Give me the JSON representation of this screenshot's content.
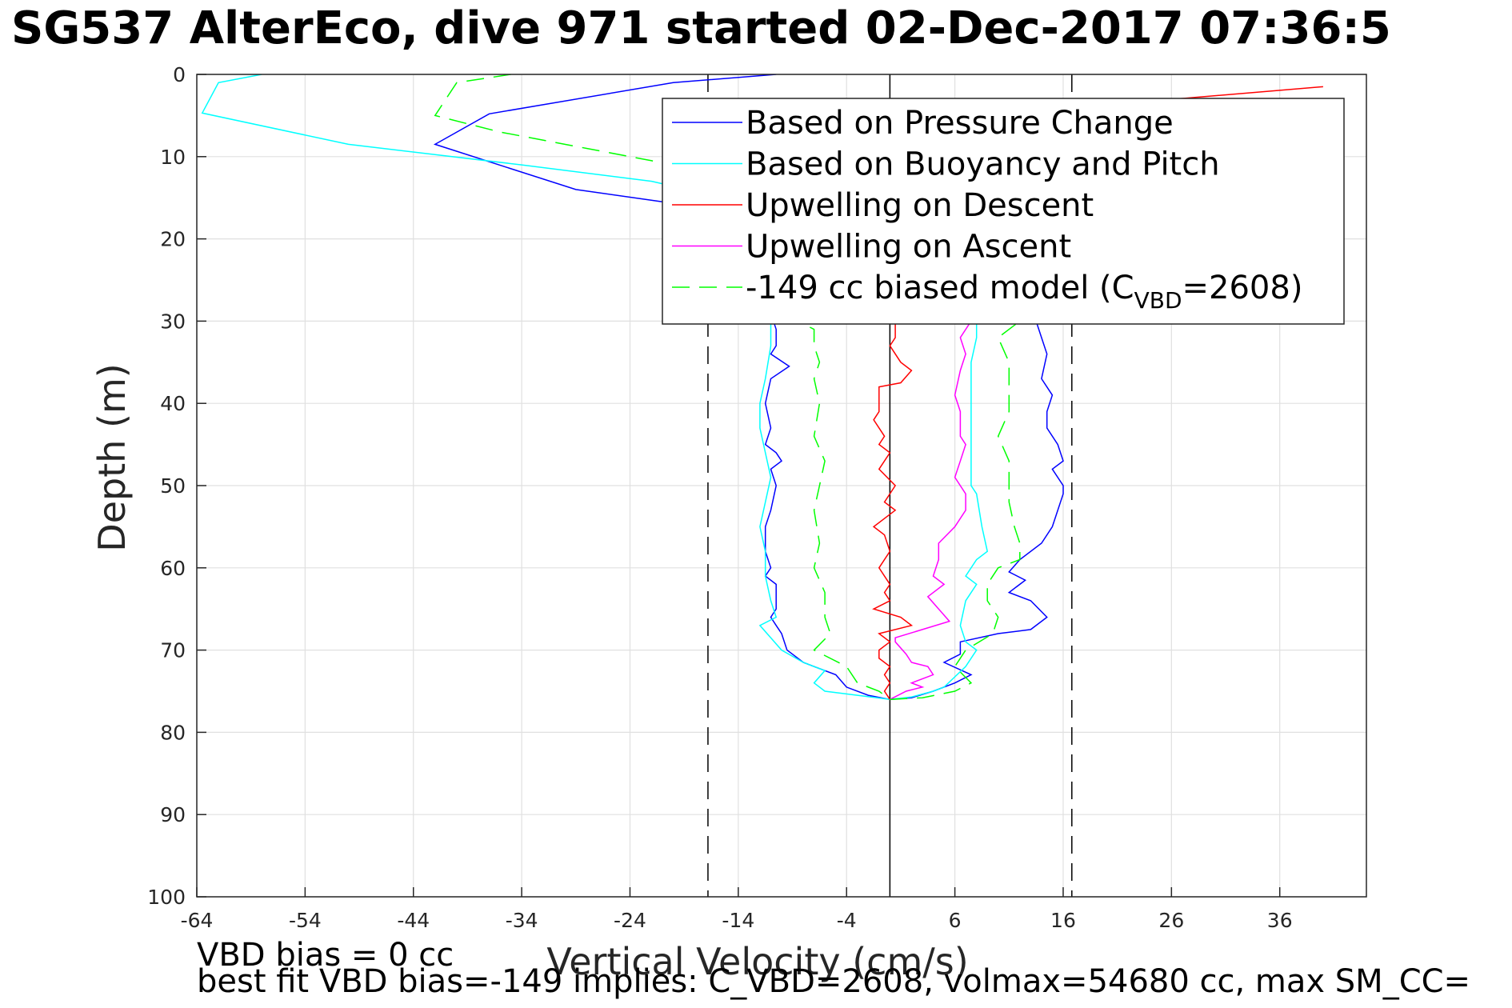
{
  "chart_data": {
    "type": "line",
    "title": "SG537 AlterEco, dive 971 started 02-Dec-2017 07:36:5",
    "xlabel": "Vertical Velocity (cm/s)",
    "ylabel": "Depth (m)",
    "xlim": [
      -64,
      44
    ],
    "ylim": [
      0,
      100
    ],
    "y_reversed": true,
    "grid": true,
    "xticks": [
      -64,
      -54,
      -44,
      -34,
      -24,
      -14,
      -4,
      6,
      16,
      26,
      36
    ],
    "yticks": [
      0,
      10,
      20,
      30,
      40,
      50,
      60,
      70,
      80,
      90,
      100
    ],
    "legend_position": "top-right",
    "reference_lines": [
      {
        "x": 0,
        "style": "solid",
        "color": "#000000"
      },
      {
        "x": -16.8,
        "style": "dashed",
        "color": "#000000"
      },
      {
        "x": 16.8,
        "style": "dashed",
        "color": "#000000"
      }
    ],
    "series": [
      {
        "name": "Based on Pressure Change",
        "color": "#0000ff",
        "style": "solid",
        "points": [
          [
            -10.5,
            0
          ],
          [
            -20,
            1
          ],
          [
            -37,
            4.8
          ],
          [
            -42,
            8.5
          ],
          [
            -29,
            14
          ],
          [
            -21,
            15.5
          ],
          [
            -16,
            17
          ],
          [
            -13,
            21
          ],
          [
            -10.5,
            31
          ],
          [
            -10.5,
            33
          ],
          [
            -11,
            34
          ],
          [
            -9.3,
            35.5
          ],
          [
            -11,
            37
          ],
          [
            -11.5,
            40
          ],
          [
            -11,
            43
          ],
          [
            -11.5,
            45
          ],
          [
            -10.5,
            46
          ],
          [
            -10,
            47
          ],
          [
            -11,
            48
          ],
          [
            -10.5,
            50
          ],
          [
            -11,
            53
          ],
          [
            -11.5,
            55
          ],
          [
            -11.5,
            58
          ],
          [
            -11,
            60
          ],
          [
            -11.5,
            61
          ],
          [
            -10.5,
            62
          ],
          [
            -10.5,
            65
          ],
          [
            -11,
            66
          ],
          [
            -10.5,
            67
          ],
          [
            -10,
            68
          ],
          [
            -9.5,
            70
          ],
          [
            -8,
            71.5
          ],
          [
            -5,
            73
          ],
          [
            -4,
            74.5
          ],
          [
            -2,
            75.5
          ],
          [
            0,
            76
          ],
          [
            2,
            75.8
          ],
          [
            4,
            75
          ],
          [
            6,
            74
          ],
          [
            7.5,
            73
          ],
          [
            5,
            71.5
          ],
          [
            6.5,
            70.5
          ],
          [
            6.5,
            69
          ],
          [
            10,
            68
          ],
          [
            13,
            67.5
          ],
          [
            14.5,
            66
          ],
          [
            13,
            64
          ],
          [
            11,
            63
          ],
          [
            12.5,
            61.5
          ],
          [
            11,
            60.5
          ],
          [
            12,
            59
          ],
          [
            14,
            57
          ],
          [
            15,
            55
          ],
          [
            16,
            51
          ],
          [
            16,
            50
          ],
          [
            15,
            48
          ],
          [
            16,
            47
          ],
          [
            15.5,
            45
          ],
          [
            14.5,
            43
          ],
          [
            14.5,
            41
          ],
          [
            15,
            39
          ],
          [
            14,
            37
          ],
          [
            14.5,
            34
          ],
          [
            14,
            32
          ],
          [
            13.5,
            30
          ]
        ]
      },
      {
        "name": "Based on Buoyancy and Pitch",
        "color": "#00ffff",
        "style": "solid",
        "points": [
          [
            -58,
            0
          ],
          [
            -62,
            1
          ],
          [
            -63.5,
            4.7
          ],
          [
            -50,
            8.5
          ],
          [
            -34,
            11
          ],
          [
            -22,
            13
          ],
          [
            -17,
            14.5
          ],
          [
            -12.5,
            22
          ],
          [
            -11,
            30
          ],
          [
            -11,
            33
          ],
          [
            -11.5,
            37
          ],
          [
            -12,
            40
          ],
          [
            -12,
            43
          ],
          [
            -11.5,
            46
          ],
          [
            -11,
            49
          ],
          [
            -11.5,
            52
          ],
          [
            -12,
            55
          ],
          [
            -11.5,
            58
          ],
          [
            -11.5,
            61
          ],
          [
            -11,
            64
          ],
          [
            -10.5,
            66
          ],
          [
            -12,
            67
          ],
          [
            -11,
            68.5
          ],
          [
            -10,
            70
          ],
          [
            -8,
            71.5
          ],
          [
            -6,
            72.5
          ],
          [
            -7,
            74
          ],
          [
            -6,
            75
          ],
          [
            -3,
            75.5
          ],
          [
            0,
            76
          ],
          [
            2,
            75.7
          ],
          [
            4,
            75
          ],
          [
            5,
            74.5
          ],
          [
            7,
            72
          ],
          [
            8,
            70
          ],
          [
            7,
            69
          ],
          [
            6.5,
            67
          ],
          [
            7,
            64
          ],
          [
            8,
            62
          ],
          [
            7,
            61
          ],
          [
            8,
            59
          ],
          [
            9,
            58
          ],
          [
            8.5,
            55
          ],
          [
            8,
            51
          ],
          [
            7.5,
            50
          ],
          [
            7.5,
            47
          ],
          [
            7.5,
            43
          ],
          [
            7.5,
            39
          ],
          [
            7.5,
            35
          ],
          [
            8,
            32
          ],
          [
            8,
            30
          ]
        ]
      },
      {
        "name": "Upwelling on Descent",
        "color": "#ff0000",
        "style": "solid",
        "points": [
          [
            40,
            1.5
          ],
          [
            20,
            3.7
          ],
          [
            0.5,
            3
          ],
          [
            0.5,
            31
          ],
          [
            0.5,
            32
          ],
          [
            0,
            33
          ],
          [
            1,
            35
          ],
          [
            2,
            36
          ],
          [
            1,
            37.5
          ],
          [
            -1,
            38
          ],
          [
            -1,
            41
          ],
          [
            -1.5,
            42
          ],
          [
            -0.5,
            44
          ],
          [
            -1,
            45
          ],
          [
            0,
            46
          ],
          [
            -1,
            48
          ],
          [
            0.5,
            50
          ],
          [
            -0.5,
            52
          ],
          [
            0.5,
            53
          ],
          [
            -1.5,
            55
          ],
          [
            -0.5,
            56
          ],
          [
            0,
            58
          ],
          [
            -1,
            60
          ],
          [
            0,
            62
          ],
          [
            -0.5,
            63
          ],
          [
            0,
            64
          ],
          [
            -1.5,
            65
          ],
          [
            1,
            66
          ],
          [
            2,
            67
          ],
          [
            -1,
            68
          ],
          [
            0,
            69
          ],
          [
            -1,
            70
          ],
          [
            -1,
            71
          ],
          [
            0,
            72
          ],
          [
            -0.5,
            73
          ],
          [
            0,
            74
          ],
          [
            -0.5,
            75
          ],
          [
            0,
            76
          ]
        ]
      },
      {
        "name": "Upwelling on Ascent",
        "color": "#ff00ff",
        "style": "solid",
        "points": [
          [
            0,
            76
          ],
          [
            1.5,
            75
          ],
          [
            3,
            74.5
          ],
          [
            2,
            74
          ],
          [
            4,
            73
          ],
          [
            3.5,
            72
          ],
          [
            2,
            71.5
          ],
          [
            1.5,
            70.5
          ],
          [
            0.5,
            69
          ],
          [
            0.5,
            68.5
          ],
          [
            3,
            67.5
          ],
          [
            5.5,
            66.5
          ],
          [
            4.5,
            65
          ],
          [
            3.5,
            63.5
          ],
          [
            5,
            62
          ],
          [
            4,
            61
          ],
          [
            4.5,
            59
          ],
          [
            4.5,
            57
          ],
          [
            6,
            55
          ],
          [
            7,
            53
          ],
          [
            7,
            51
          ],
          [
            6,
            49
          ],
          [
            6.5,
            47
          ],
          [
            7,
            45
          ],
          [
            6.5,
            44
          ],
          [
            6.5,
            41
          ],
          [
            6,
            39
          ],
          [
            6.5,
            36
          ],
          [
            7,
            34
          ],
          [
            6.5,
            32
          ],
          [
            7.5,
            30
          ]
        ]
      },
      {
        "name": "-149 cc biased model (CVBD=2608)",
        "color": "#00ff00",
        "style": "dashed",
        "points": [
          [
            -35,
            0
          ],
          [
            -40,
            1
          ],
          [
            -42,
            5
          ],
          [
            -36,
            7
          ],
          [
            -28,
            9
          ],
          [
            -22,
            10.5
          ],
          [
            -17,
            12
          ],
          [
            -13,
            14
          ],
          [
            -8.5,
            30
          ],
          [
            -7,
            31
          ],
          [
            -7,
            33
          ],
          [
            -6.5,
            35
          ],
          [
            -7,
            37
          ],
          [
            -6.5,
            40
          ],
          [
            -7,
            44
          ],
          [
            -6,
            47
          ],
          [
            -6.5,
            50
          ],
          [
            -7,
            53
          ],
          [
            -6.5,
            57
          ],
          [
            -7,
            60
          ],
          [
            -6,
            63
          ],
          [
            -6,
            66
          ],
          [
            -5.5,
            68
          ],
          [
            -7,
            70
          ],
          [
            -4,
            72
          ],
          [
            -3,
            74
          ],
          [
            -1,
            75
          ],
          [
            0,
            76
          ],
          [
            3,
            75.8
          ],
          [
            6,
            75
          ],
          [
            7.5,
            74
          ],
          [
            6,
            72
          ],
          [
            7,
            70
          ],
          [
            9.5,
            68
          ],
          [
            10,
            66
          ],
          [
            9,
            64
          ],
          [
            9,
            62
          ],
          [
            10,
            60
          ],
          [
            12,
            59
          ],
          [
            12,
            57
          ],
          [
            11.5,
            55
          ],
          [
            11,
            52
          ],
          [
            11,
            47
          ],
          [
            10,
            44
          ],
          [
            11,
            41
          ],
          [
            11,
            38
          ],
          [
            11,
            35
          ],
          [
            10,
            32
          ],
          [
            12,
            30
          ]
        ]
      }
    ],
    "legend_label_main": "-149 cc biased model (C",
    "legend_label_sub": "VBD",
    "legend_label_tail": "=2608)"
  },
  "notes": {
    "line1": "VBD bias = 0 cc",
    "line2": "best fit VBD bias=-149 implies: C_VBD=2608, volmax=54680 cc, max SM_CC="
  }
}
